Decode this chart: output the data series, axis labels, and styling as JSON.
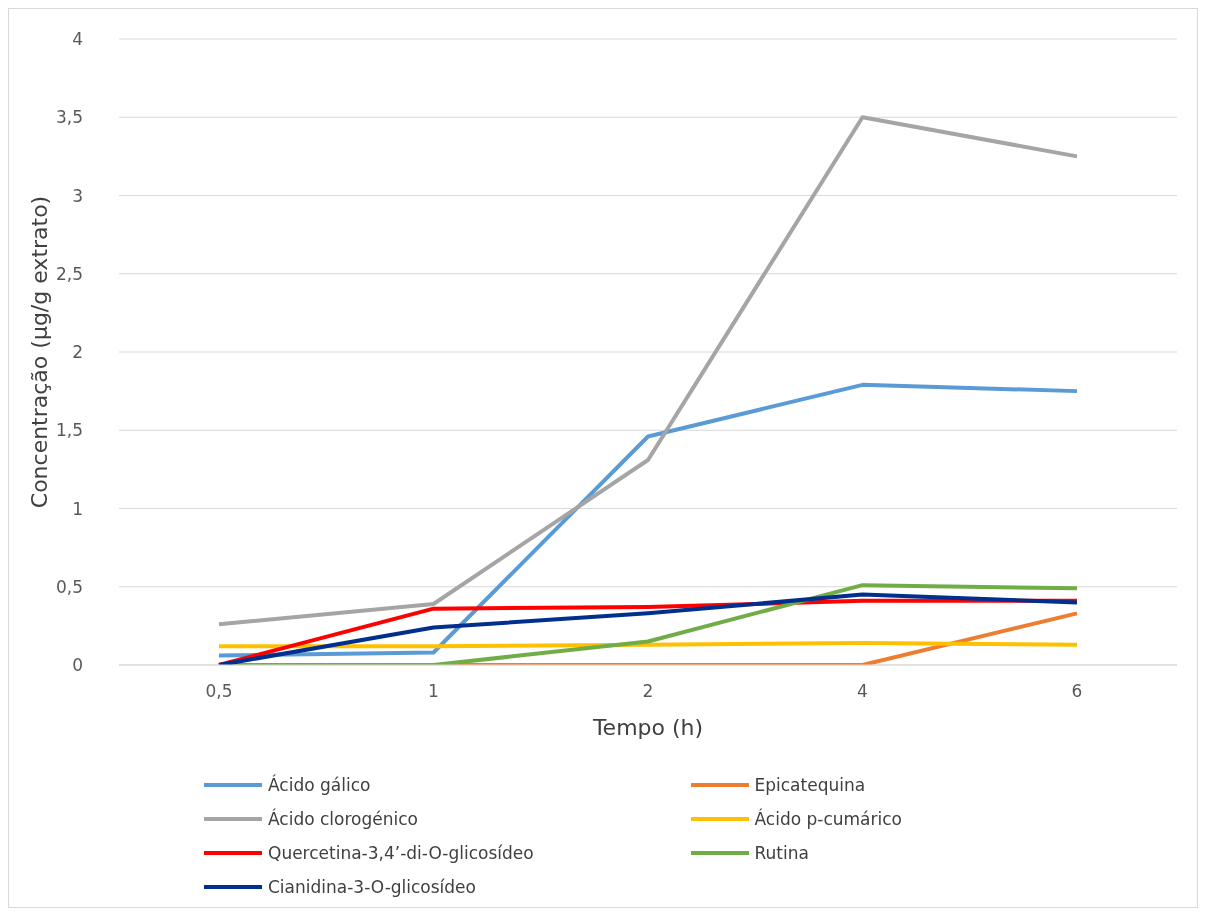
{
  "chart_data": {
    "type": "line",
    "xlabel": "Tempo (h)",
    "ylabel": "Concentração (µg/g extrato)",
    "categories": [
      "0,5",
      "1",
      "2",
      "4",
      "6"
    ],
    "series": [
      {
        "name": "Ácido gálico",
        "color": "#5b9bd5",
        "values": [
          0.06,
          0.08,
          1.46,
          1.79,
          1.75
        ]
      },
      {
        "name": "Epicatequina",
        "color": "#ed7d31",
        "values": [
          0,
          0,
          0,
          0,
          0.33
        ]
      },
      {
        "name": "Ácido clorogénico",
        "color": "#a5a5a5",
        "values": [
          0.26,
          0.39,
          1.31,
          3.5,
          3.25
        ]
      },
      {
        "name": "Ácido p-cumárico",
        "color": "#ffc000",
        "values": [
          0.12,
          0.12,
          0.13,
          0.14,
          0.13
        ]
      },
      {
        "name": "Quercetina-3,4’-di-O-glicosídeo",
        "color": "#ff0000",
        "values": [
          0,
          0.36,
          0.37,
          0.41,
          0.41
        ]
      },
      {
        "name": "Rutina",
        "color": "#70ad47",
        "values": [
          0,
          0,
          0.15,
          0.51,
          0.49
        ]
      },
      {
        "name": "Cianidina-3-O-glicosídeo",
        "color": "#002f8e",
        "values": [
          0,
          0.24,
          0.33,
          0.45,
          0.4
        ]
      }
    ],
    "ylim": [
      0,
      4
    ],
    "yticks": [
      0,
      {
        "value": 0.5,
        "label": "0,5"
      },
      1,
      {
        "value": 1.5,
        "label": "1,5"
      },
      2,
      {
        "value": 2.5,
        "label": "2,5"
      },
      3,
      {
        "value": 3.5,
        "label": "3,5"
      },
      4
    ],
    "grid": "y",
    "legend": "bottom",
    "marker": "none",
    "line_style": "solid"
  }
}
